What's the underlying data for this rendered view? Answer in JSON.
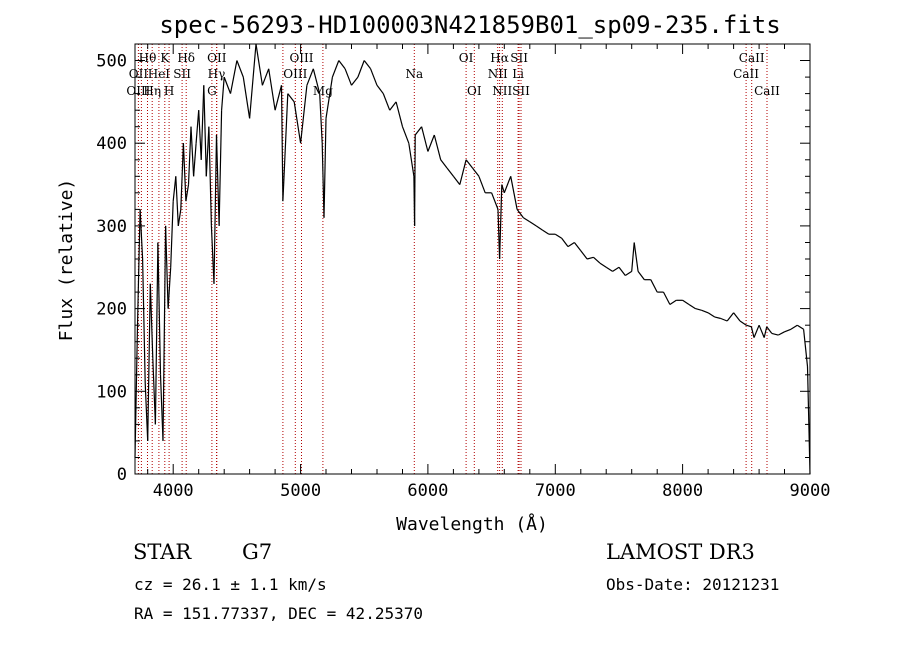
{
  "chart_data": {
    "type": "line",
    "title": "spec-56293-HD100003N421859B01_sp09-235.fits",
    "xlabel": "Wavelength (Å)",
    "ylabel": "Flux (relative)",
    "xlim": [
      3700,
      9000
    ],
    "ylim": [
      0,
      520
    ],
    "x_ticks": [
      4000,
      5000,
      6000,
      7000,
      8000,
      9000
    ],
    "y_ticks": [
      0,
      100,
      200,
      300,
      400,
      500
    ],
    "series": [
      {
        "name": "flux",
        "x": [
          3700,
          3720,
          3740,
          3760,
          3780,
          3800,
          3820,
          3840,
          3860,
          3880,
          3900,
          3920,
          3940,
          3960,
          3980,
          4000,
          4020,
          4040,
          4060,
          4080,
          4100,
          4120,
          4140,
          4160,
          4180,
          4200,
          4220,
          4240,
          4260,
          4280,
          4300,
          4320,
          4340,
          4360,
          4380,
          4400,
          4450,
          4500,
          4550,
          4600,
          4650,
          4700,
          4750,
          4800,
          4850,
          4861,
          4900,
          4950,
          5000,
          5050,
          5100,
          5150,
          5170,
          5184,
          5200,
          5250,
          5300,
          5350,
          5400,
          5450,
          5500,
          5550,
          5600,
          5650,
          5700,
          5750,
          5800,
          5850,
          5890,
          5895,
          5900,
          5950,
          6000,
          6050,
          6100,
          6150,
          6200,
          6250,
          6300,
          6350,
          6400,
          6450,
          6500,
          6550,
          6563,
          6580,
          6600,
          6650,
          6700,
          6750,
          6800,
          6850,
          6900,
          6950,
          7000,
          7050,
          7100,
          7150,
          7200,
          7250,
          7300,
          7350,
          7400,
          7450,
          7500,
          7550,
          7600,
          7620,
          7650,
          7700,
          7750,
          7800,
          7850,
          7900,
          7950,
          8000,
          8050,
          8100,
          8150,
          8200,
          8250,
          8300,
          8350,
          8400,
          8450,
          8500,
          8540,
          8560,
          8600,
          8640,
          8660,
          8700,
          8750,
          8800,
          8850,
          8900,
          8950,
          8980,
          9000
        ],
        "y": [
          20,
          180,
          320,
          260,
          110,
          40,
          230,
          140,
          60,
          280,
          120,
          40,
          300,
          200,
          250,
          330,
          360,
          300,
          320,
          400,
          330,
          350,
          420,
          360,
          400,
          440,
          380,
          470,
          360,
          420,
          300,
          230,
          410,
          300,
          440,
          480,
          460,
          500,
          480,
          430,
          520,
          470,
          490,
          440,
          470,
          330,
          460,
          450,
          400,
          470,
          490,
          460,
          400,
          310,
          430,
          480,
          500,
          490,
          470,
          480,
          500,
          490,
          470,
          460,
          440,
          450,
          420,
          400,
          360,
          300,
          410,
          420,
          390,
          410,
          380,
          370,
          360,
          350,
          380,
          370,
          360,
          340,
          340,
          320,
          260,
          350,
          340,
          360,
          320,
          310,
          305,
          300,
          295,
          290,
          290,
          285,
          275,
          280,
          270,
          260,
          262,
          255,
          250,
          245,
          250,
          240,
          245,
          280,
          245,
          235,
          235,
          220,
          220,
          205,
          210,
          210,
          205,
          200,
          198,
          195,
          190,
          188,
          185,
          195,
          185,
          180,
          178,
          165,
          180,
          165,
          178,
          170,
          168,
          172,
          175,
          180,
          175,
          130,
          0
        ]
      }
    ],
    "spectral_lines": [
      {
        "label": "Hθ",
        "row": 1,
        "wl": 3798
      },
      {
        "label": "K",
        "row": 1,
        "wl": 3934
      },
      {
        "label": "Hδ",
        "row": 1,
        "wl": 4102
      },
      {
        "label": "OII",
        "row": 1,
        "wl": 4342
      },
      {
        "label": "OIII",
        "row": 1,
        "wl": 5007
      },
      {
        "label": "OI",
        "row": 1,
        "wl": 6300
      },
      {
        "label": "Hα",
        "row": 1,
        "wl": 6563
      },
      {
        "label": "SII",
        "row": 1,
        "wl": 6716
      },
      {
        "label": "CaII",
        "row": 1,
        "wl": 8542
      },
      {
        "label": "OII",
        "row": 2,
        "wl": 3727
      },
      {
        "label": "HeI",
        "row": 2,
        "wl": 3888
      },
      {
        "label": "SII",
        "row": 2,
        "wl": 4070
      },
      {
        "label": "Hγ",
        "row": 2,
        "wl": 4340
      },
      {
        "label": "OIII",
        "row": 2,
        "wl": 4959
      },
      {
        "label": "Na",
        "row": 2,
        "wl": 5893
      },
      {
        "label": "NII",
        "row": 2,
        "wl": 6548
      },
      {
        "label": "Li",
        "row": 2,
        "wl": 6708
      },
      {
        "label": "CaII",
        "row": 2,
        "wl": 8498
      },
      {
        "label": "OIII",
        "row": 3,
        "wl": 3727
      },
      {
        "label": "Hη",
        "row": 3,
        "wl": 3835
      },
      {
        "label": "H",
        "row": 3,
        "wl": 3968
      },
      {
        "label": "G",
        "row": 3,
        "wl": 4304
      },
      {
        "label": "Mg",
        "row": 3,
        "wl": 5175
      },
      {
        "label": "OI",
        "row": 3,
        "wl": 6364
      },
      {
        "label": "NII",
        "row": 3,
        "wl": 6584
      },
      {
        "label": "SII",
        "row": 3,
        "wl": 6731
      },
      {
        "label": "CaII",
        "row": 3,
        "wl": 8662
      }
    ],
    "marker_lines": [
      3727,
      3750,
      3798,
      3835,
      3888,
      3934,
      3968,
      4070,
      4102,
      4304,
      4340,
      4342,
      4861,
      4959,
      5007,
      5175,
      5893,
      6300,
      6364,
      6548,
      6563,
      6584,
      6708,
      6716,
      6731,
      8498,
      8542,
      8662
    ],
    "grid": false,
    "legend": "none"
  },
  "info": {
    "class": "STAR",
    "subclass": "G7",
    "survey": "LAMOST DR3",
    "cz": "cz = 26.1 ± 1.1 km/s",
    "obs_date": "Obs-Date: 20121231",
    "radec": "RA = 151.77337, DEC =  42.25370"
  }
}
